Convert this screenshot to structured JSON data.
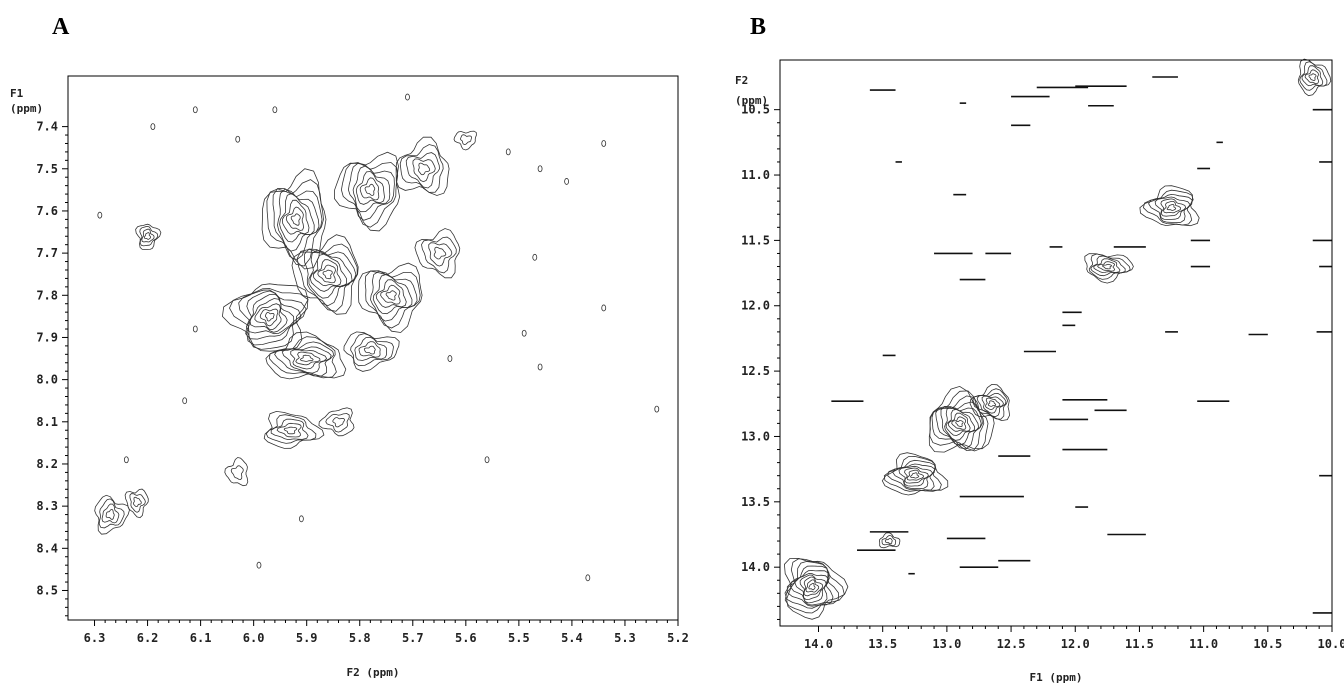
{
  "chart_data": [
    {
      "type": "contour",
      "panel_label": "A",
      "xlabel": "F2 (ppm)",
      "ylabel_line1": "F1",
      "ylabel_line2": "(ppm)",
      "xlim": [
        6.35,
        5.2
      ],
      "ylim": [
        7.28,
        8.57
      ],
      "x_ticks": [
        "6.3",
        "6.2",
        "6.1",
        "6.0",
        "5.9",
        "5.8",
        "5.7",
        "5.6",
        "5.5",
        "5.4",
        "5.3",
        "5.2"
      ],
      "y_ticks": [
        "7.4",
        "7.5",
        "7.6",
        "7.7",
        "7.8",
        "7.9",
        "8.0",
        "8.1",
        "8.2",
        "8.3",
        "8.4",
        "8.5"
      ],
      "peaks": [
        {
          "x": 5.92,
          "y": 7.62,
          "sx": 0.06,
          "sy": 0.1,
          "levels": 8
        },
        {
          "x": 5.78,
          "y": 7.55,
          "sx": 0.06,
          "sy": 0.08,
          "levels": 7
        },
        {
          "x": 5.68,
          "y": 7.5,
          "sx": 0.05,
          "sy": 0.06,
          "levels": 5
        },
        {
          "x": 5.97,
          "y": 7.85,
          "sx": 0.07,
          "sy": 0.08,
          "levels": 9
        },
        {
          "x": 5.86,
          "y": 7.75,
          "sx": 0.06,
          "sy": 0.08,
          "levels": 8
        },
        {
          "x": 5.74,
          "y": 7.8,
          "sx": 0.06,
          "sy": 0.07,
          "levels": 7
        },
        {
          "x": 5.65,
          "y": 7.7,
          "sx": 0.04,
          "sy": 0.05,
          "levels": 4
        },
        {
          "x": 5.9,
          "y": 7.95,
          "sx": 0.07,
          "sy": 0.05,
          "levels": 7
        },
        {
          "x": 5.78,
          "y": 7.93,
          "sx": 0.05,
          "sy": 0.04,
          "levels": 5
        },
        {
          "x": 5.93,
          "y": 8.12,
          "sx": 0.05,
          "sy": 0.04,
          "levels": 5
        },
        {
          "x": 5.84,
          "y": 8.1,
          "sx": 0.03,
          "sy": 0.03,
          "levels": 3
        },
        {
          "x": 6.2,
          "y": 7.66,
          "sx": 0.02,
          "sy": 0.03,
          "levels": 4
        },
        {
          "x": 6.27,
          "y": 8.32,
          "sx": 0.03,
          "sy": 0.04,
          "levels": 4
        },
        {
          "x": 6.22,
          "y": 8.29,
          "sx": 0.02,
          "sy": 0.03,
          "levels": 3
        },
        {
          "x": 6.03,
          "y": 8.22,
          "sx": 0.02,
          "sy": 0.03,
          "levels": 2
        },
        {
          "x": 5.6,
          "y": 7.43,
          "sx": 0.02,
          "sy": 0.02,
          "levels": 2
        }
      ],
      "specks": [
        {
          "x": 6.19,
          "y": 7.4
        },
        {
          "x": 6.03,
          "y": 7.43
        },
        {
          "x": 5.96,
          "y": 7.36
        },
        {
          "x": 5.46,
          "y": 7.5
        },
        {
          "x": 5.41,
          "y": 7.53
        },
        {
          "x": 5.34,
          "y": 7.44
        },
        {
          "x": 6.29,
          "y": 7.61
        },
        {
          "x": 5.52,
          "y": 7.46
        },
        {
          "x": 5.47,
          "y": 7.71
        },
        {
          "x": 5.46,
          "y": 7.97
        },
        {
          "x": 5.49,
          "y": 7.89
        },
        {
          "x": 5.34,
          "y": 7.83
        },
        {
          "x": 5.24,
          "y": 8.07
        },
        {
          "x": 5.56,
          "y": 8.19
        },
        {
          "x": 5.37,
          "y": 8.47
        },
        {
          "x": 6.13,
          "y": 8.05
        },
        {
          "x": 6.11,
          "y": 7.88
        },
        {
          "x": 5.99,
          "y": 8.44
        },
        {
          "x": 5.91,
          "y": 8.33
        },
        {
          "x": 6.11,
          "y": 7.36
        },
        {
          "x": 5.71,
          "y": 7.33
        },
        {
          "x": 5.63,
          "y": 7.95
        },
        {
          "x": 6.24,
          "y": 8.19
        }
      ]
    },
    {
      "type": "contour",
      "panel_label": "B",
      "xlabel": "F1 (ppm)",
      "ylabel_line1": "F2",
      "ylabel_line2": "(ppm)",
      "xlim": [
        14.3,
        10.0
      ],
      "ylim": [
        10.12,
        14.45
      ],
      "x_ticks": [
        "14.0",
        "13.5",
        "13.0",
        "12.5",
        "12.0",
        "11.5",
        "11.0",
        "10.5",
        "10.0"
      ],
      "y_ticks": [
        "10.5",
        "11.0",
        "11.5",
        "12.0",
        "12.5",
        "13.0",
        "13.5",
        "14.0"
      ],
      "peaks": [
        {
          "x": 14.05,
          "y": 14.15,
          "sx": 0.22,
          "sy": 0.22,
          "levels": 10
        },
        {
          "x": 12.9,
          "y": 12.9,
          "sx": 0.25,
          "sy": 0.22,
          "levels": 10
        },
        {
          "x": 13.25,
          "y": 13.3,
          "sx": 0.22,
          "sy": 0.15,
          "levels": 8
        },
        {
          "x": 12.65,
          "y": 12.75,
          "sx": 0.15,
          "sy": 0.12,
          "levels": 6
        },
        {
          "x": 11.25,
          "y": 11.25,
          "sx": 0.2,
          "sy": 0.15,
          "levels": 7
        },
        {
          "x": 11.75,
          "y": 11.7,
          "sx": 0.18,
          "sy": 0.1,
          "levels": 6
        },
        {
          "x": 10.15,
          "y": 10.25,
          "sx": 0.12,
          "sy": 0.12,
          "levels": 5
        },
        {
          "x": 13.45,
          "y": 13.8,
          "sx": 0.08,
          "sy": 0.05,
          "levels": 3
        }
      ],
      "dashes": [
        {
          "x1": 13.6,
          "x2": 13.4,
          "y": 10.35
        },
        {
          "x1": 12.5,
          "x2": 12.2,
          "y": 10.4
        },
        {
          "x1": 12.3,
          "x2": 11.9,
          "y": 10.33
        },
        {
          "x1": 12.0,
          "x2": 11.6,
          "y": 10.32
        },
        {
          "x1": 11.4,
          "x2": 11.2,
          "y": 10.25
        },
        {
          "x1": 11.9,
          "x2": 11.7,
          "y": 10.47
        },
        {
          "x1": 12.5,
          "x2": 12.35,
          "y": 10.62
        },
        {
          "x1": 13.1,
          "x2": 12.8,
          "y": 11.6
        },
        {
          "x1": 12.7,
          "x2": 12.5,
          "y": 11.6
        },
        {
          "x1": 12.9,
          "x2": 12.7,
          "y": 11.8
        },
        {
          "x1": 12.2,
          "x2": 12.1,
          "y": 11.55
        },
        {
          "x1": 11.7,
          "x2": 11.45,
          "y": 11.55
        },
        {
          "x1": 12.1,
          "x2": 11.95,
          "y": 12.05
        },
        {
          "x1": 12.1,
          "x2": 12.0,
          "y": 12.15
        },
        {
          "x1": 12.4,
          "x2": 12.15,
          "y": 12.35
        },
        {
          "x1": 11.3,
          "x2": 11.2,
          "y": 12.2
        },
        {
          "x1": 10.65,
          "x2": 10.5,
          "y": 12.22
        },
        {
          "x1": 13.9,
          "x2": 13.65,
          "y": 12.73
        },
        {
          "x1": 13.5,
          "x2": 13.4,
          "y": 12.38
        },
        {
          "x1": 12.1,
          "x2": 11.75,
          "y": 12.72
        },
        {
          "x1": 11.85,
          "x2": 11.6,
          "y": 12.8
        },
        {
          "x1": 12.2,
          "x2": 11.9,
          "y": 12.87
        },
        {
          "x1": 11.05,
          "x2": 10.8,
          "y": 12.73
        },
        {
          "x1": 12.1,
          "x2": 11.75,
          "y": 13.1
        },
        {
          "x1": 12.6,
          "x2": 12.35,
          "y": 13.15
        },
        {
          "x1": 12.9,
          "x2": 12.4,
          "y": 13.46
        },
        {
          "x1": 12.0,
          "x2": 11.9,
          "y": 13.54
        },
        {
          "x1": 13.6,
          "x2": 13.3,
          "y": 13.73
        },
        {
          "x1": 13.7,
          "x2": 13.4,
          "y": 13.87
        },
        {
          "x1": 13.0,
          "x2": 12.7,
          "y": 13.78
        },
        {
          "x1": 12.9,
          "x2": 12.6,
          "y": 14.0
        },
        {
          "x1": 12.6,
          "x2": 12.35,
          "y": 13.95
        },
        {
          "x1": 11.75,
          "x2": 11.45,
          "y": 13.75
        },
        {
          "x1": 13.3,
          "x2": 13.25,
          "y": 14.05
        },
        {
          "x1": 10.15,
          "x2": 10.0,
          "y": 10.5
        },
        {
          "x1": 10.1,
          "x2": 10.0,
          "y": 10.9
        },
        {
          "x1": 10.15,
          "x2": 10.0,
          "y": 11.5
        },
        {
          "x1": 10.1,
          "x2": 10.0,
          "y": 11.7
        },
        {
          "x1": 10.12,
          "x2": 10.0,
          "y": 12.2
        },
        {
          "x1": 10.1,
          "x2": 10.0,
          "y": 13.3
        },
        {
          "x1": 10.15,
          "x2": 10.0,
          "y": 14.35
        },
        {
          "x1": 11.1,
          "x2": 10.95,
          "y": 11.5
        },
        {
          "x1": 11.1,
          "x2": 10.95,
          "y": 11.7
        },
        {
          "x1": 10.9,
          "x2": 10.85,
          "y": 10.75
        },
        {
          "x1": 13.4,
          "x2": 13.35,
          "y": 10.9
        },
        {
          "x1": 12.95,
          "x2": 12.85,
          "y": 11.15
        },
        {
          "x1": 12.9,
          "x2": 12.85,
          "y": 10.45
        },
        {
          "x1": 11.05,
          "x2": 10.95,
          "y": 10.95
        }
      ]
    }
  ]
}
